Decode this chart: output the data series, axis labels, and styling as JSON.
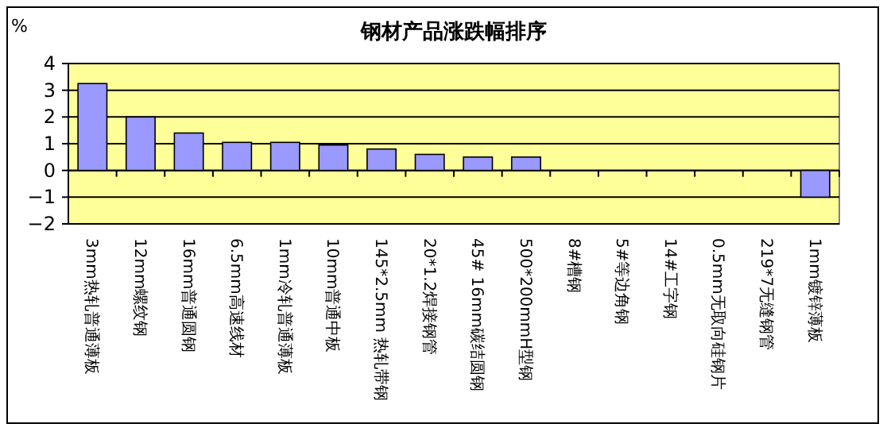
{
  "chart_data": {
    "type": "bar",
    "title": "钢材产品涨跌幅排序",
    "ylabel": "%",
    "categories": [
      "3mm热轧普通薄板",
      "12mm螺纹钢",
      "16mm普通圆钢",
      "6.5mm高速线材",
      "1mm冷轧普通薄板",
      "10mm普通中板",
      "145*2.5mm 热轧带钢",
      "20*1.2焊接钢管",
      "45# 16mm碳结圆钢",
      "500*200mmH型钢",
      "8#槽钢",
      "5#等边角钢",
      "14#工字钢",
      "0.5mm无取向硅钢片",
      "219*7无缝钢管",
      "1mm镀锌薄板"
    ],
    "values": [
      3.25,
      2.0,
      1.4,
      1.05,
      1.05,
      0.95,
      0.8,
      0.6,
      0.5,
      0.5,
      0,
      0,
      0,
      0,
      0,
      -1.0
    ],
    "color": "#9999ff",
    "ylim": [
      -2,
      4
    ],
    "yticks": [
      -2,
      -1,
      0,
      1,
      2,
      3,
      4
    ],
    "grid": "y",
    "legend": false
  }
}
